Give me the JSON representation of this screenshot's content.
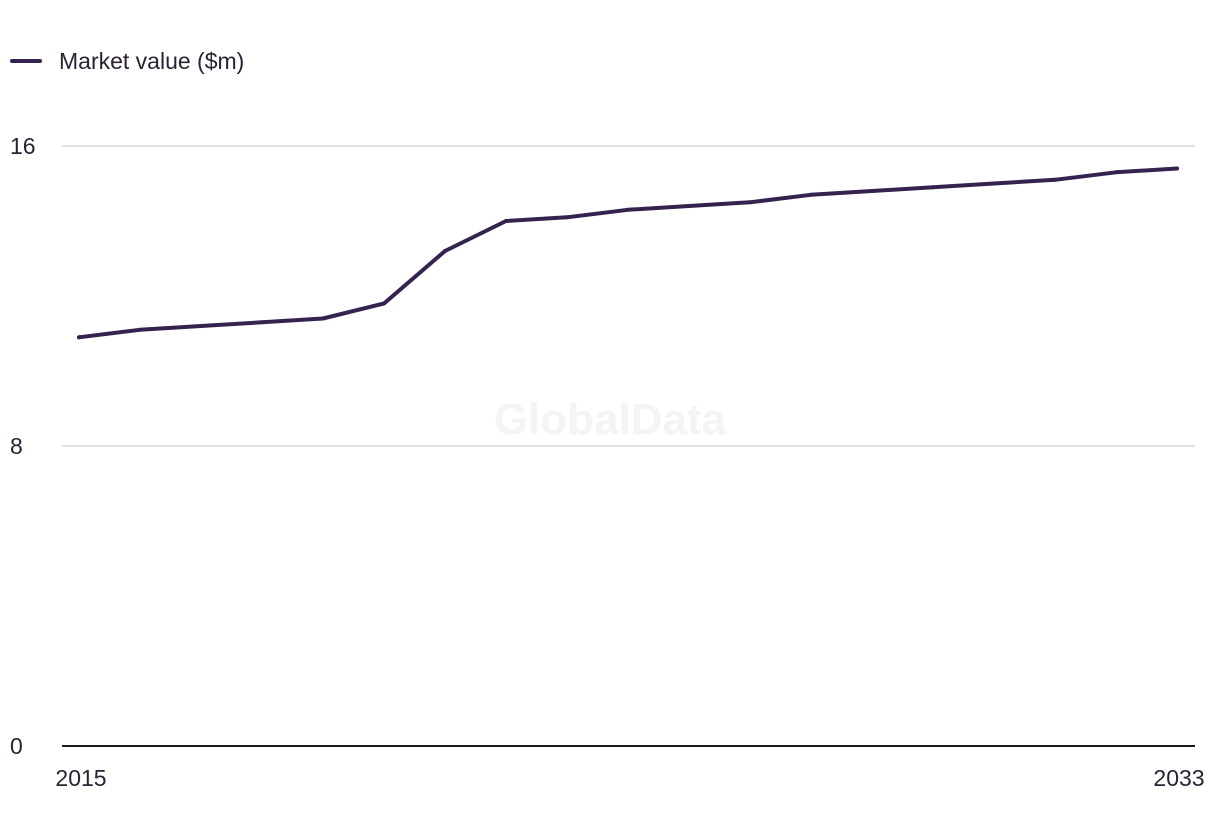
{
  "legend": {
    "label": "Market value ($m)"
  },
  "watermark": "GlobalData",
  "colors": {
    "series": "#35224f",
    "grid": "#d9d9d9",
    "axis": "#1a1a1a",
    "text": "#2b2235"
  },
  "chart_data": {
    "type": "line",
    "series": [
      {
        "name": "Market value ($m)",
        "x": [
          2015,
          2016,
          2017,
          2018,
          2019,
          2020,
          2021,
          2022,
          2023,
          2024,
          2025,
          2026,
          2027,
          2028,
          2029,
          2030,
          2031,
          2032,
          2033
        ],
        "values": [
          10.9,
          11.1,
          11.2,
          11.3,
          11.4,
          11.8,
          13.2,
          14.0,
          14.1,
          14.3,
          14.4,
          14.5,
          14.7,
          14.8,
          14.9,
          15.0,
          15.1,
          15.3,
          15.4
        ]
      }
    ],
    "xlim": [
      2015,
      2033
    ],
    "ylim": [
      0,
      16
    ],
    "yticks": [
      0,
      8,
      16
    ],
    "xtick_labels": [
      "2015",
      "2033"
    ],
    "grid": true,
    "legend_position": "top-left",
    "title": "",
    "xlabel": "",
    "ylabel": ""
  }
}
